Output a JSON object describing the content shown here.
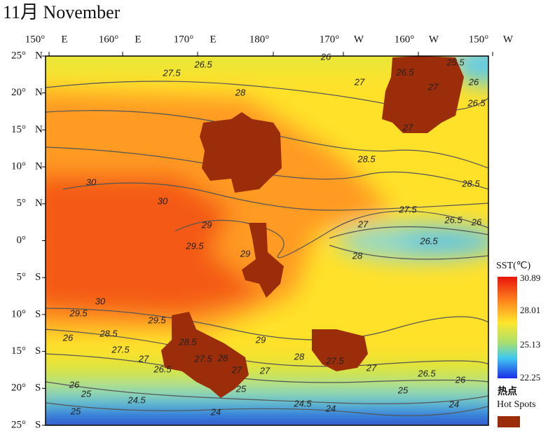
{
  "title": "11月 November",
  "top_axis": [
    {
      "deg": "150°",
      "hemi": "E"
    },
    {
      "deg": "160°",
      "hemi": "E"
    },
    {
      "deg": "170°",
      "hemi": "E"
    },
    {
      "deg": "180°"
    },
    {
      "deg": "170°",
      "hemi": "W"
    },
    {
      "deg": "160°",
      "hemi": "W"
    },
    {
      "deg": "150°",
      "hemi": "W"
    }
  ],
  "left_axis": [
    {
      "deg": "25°",
      "hemi": "N"
    },
    {
      "deg": "20°",
      "hemi": "N"
    },
    {
      "deg": "15°",
      "hemi": "N"
    },
    {
      "deg": "10°",
      "hemi": "N"
    },
    {
      "deg": "5°",
      "hemi": "N"
    },
    {
      "deg": "0°"
    },
    {
      "deg": "5°",
      "hemi": "S"
    },
    {
      "deg": "10°",
      "hemi": "S"
    },
    {
      "deg": "15°",
      "hemi": "S"
    },
    {
      "deg": "20°",
      "hemi": "S"
    },
    {
      "deg": "25°",
      "hemi": "S"
    }
  ],
  "legend": {
    "title": "SST(℃)",
    "ticks": [
      "30.89",
      "28.01",
      "25.13",
      "22.25"
    ],
    "hotspot_cn": "热点",
    "hotspot_en": "Hot Spots"
  },
  "contour_labels": [
    "26.5",
    "27.5",
    "26",
    "25.5",
    "26.5",
    "27",
    "26",
    "27",
    "26.5",
    "28",
    "27",
    "28.5",
    "28.5",
    "30",
    "30",
    "27.5",
    "27",
    "26.5",
    "26",
    "29",
    "26.5",
    "29.5",
    "29",
    "28",
    "30",
    "29.5",
    "29.5",
    "28.5",
    "28.5",
    "29",
    "26",
    "27.5",
    "27.5",
    "28",
    "28",
    "27.5",
    "27",
    "26.5",
    "27",
    "27",
    "27",
    "26.5",
    "26",
    "26",
    "25",
    "24.5",
    "25",
    "25",
    "24.5",
    "24",
    "24",
    "24",
    "25"
  ]
}
